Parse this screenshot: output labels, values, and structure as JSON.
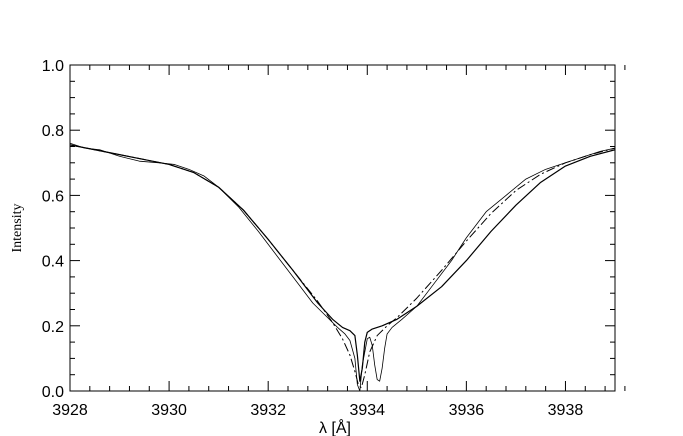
{
  "chart_data": {
    "type": "line",
    "title": "",
    "xlabel": "λ [Å]",
    "ylabel": "Intensity",
    "xlim": [
      3928,
      3939
    ],
    "ylim": [
      0.0,
      1.0
    ],
    "x_ticks": [
      3928,
      3930,
      3932,
      3934,
      3936,
      3938
    ],
    "x_tick_labels": [
      "3928",
      "3930",
      "3932",
      "3934",
      "3936",
      "3938"
    ],
    "y_ticks": [
      0.0,
      0.2,
      0.4,
      0.6,
      0.8,
      1.0
    ],
    "y_tick_labels": [
      "0.0",
      "0.2",
      "0.4",
      "0.6",
      "0.8",
      "1.0"
    ],
    "grid": false,
    "legend": "none",
    "series": [
      {
        "style": "solid-thin-noisy",
        "x": [
          3928.0,
          3928.3,
          3928.6,
          3929.0,
          3929.4,
          3929.8,
          3930.1,
          3930.4,
          3930.7,
          3931.0,
          3931.4,
          3931.8,
          3932.2,
          3932.6,
          3932.9,
          3933.2,
          3933.4,
          3933.55,
          3933.65,
          3933.75,
          3933.8,
          3933.85,
          3933.9,
          3933.95,
          3934.0,
          3934.05,
          3934.1,
          3934.15,
          3934.2,
          3934.25,
          3934.3,
          3934.35,
          3934.4,
          3934.5,
          3934.7,
          3935.0,
          3935.3,
          3935.7,
          3936.0,
          3936.4,
          3936.8,
          3937.2,
          3937.6,
          3938.0,
          3938.4,
          3938.7,
          3939.0
        ],
        "y": [
          0.76,
          0.745,
          0.74,
          0.72,
          0.705,
          0.7,
          0.695,
          0.68,
          0.66,
          0.625,
          0.565,
          0.49,
          0.41,
          0.33,
          0.27,
          0.225,
          0.195,
          0.175,
          0.155,
          0.1,
          0.02,
          0.0,
          0.08,
          0.12,
          0.16,
          0.165,
          0.14,
          0.08,
          0.035,
          0.03,
          0.07,
          0.13,
          0.175,
          0.195,
          0.22,
          0.26,
          0.32,
          0.4,
          0.47,
          0.55,
          0.6,
          0.65,
          0.68,
          0.7,
          0.72,
          0.735,
          0.745
        ]
      },
      {
        "style": "dash-dot",
        "x": [
          3928.0,
          3928.5,
          3929.0,
          3929.5,
          3930.0,
          3930.5,
          3931.0,
          3931.5,
          3932.0,
          3932.5,
          3933.0,
          3933.3,
          3933.5,
          3933.65,
          3933.75,
          3933.82,
          3933.88,
          3933.95,
          3934.05,
          3934.2,
          3934.4,
          3934.6,
          3935.0,
          3935.5,
          3936.0,
          3936.5,
          3937.0,
          3937.5,
          3938.0,
          3938.5,
          3939.0
        ],
        "y": [
          0.755,
          0.74,
          0.725,
          0.71,
          0.695,
          0.67,
          0.625,
          0.555,
          0.465,
          0.37,
          0.275,
          0.21,
          0.16,
          0.11,
          0.06,
          0.02,
          0.01,
          0.05,
          0.12,
          0.17,
          0.2,
          0.225,
          0.285,
          0.37,
          0.46,
          0.545,
          0.615,
          0.665,
          0.7,
          0.725,
          0.745
        ]
      },
      {
        "style": "solid",
        "x": [
          3928.0,
          3928.5,
          3929.0,
          3929.5,
          3930.0,
          3930.5,
          3931.0,
          3931.5,
          3932.0,
          3932.5,
          3933.0,
          3933.3,
          3933.5,
          3933.65,
          3933.75,
          3933.8,
          3933.85,
          3933.9,
          3933.95,
          3934.0,
          3934.1,
          3934.3,
          3934.6,
          3935.0,
          3935.5,
          3936.0,
          3936.5,
          3937.0,
          3937.5,
          3938.0,
          3938.5,
          3939.0
        ],
        "y": [
          0.755,
          0.74,
          0.725,
          0.71,
          0.695,
          0.67,
          0.625,
          0.555,
          0.465,
          0.37,
          0.27,
          0.22,
          0.195,
          0.185,
          0.17,
          0.11,
          0.03,
          0.07,
          0.15,
          0.18,
          0.19,
          0.2,
          0.22,
          0.26,
          0.32,
          0.4,
          0.49,
          0.57,
          0.64,
          0.69,
          0.72,
          0.74
        ]
      }
    ]
  }
}
